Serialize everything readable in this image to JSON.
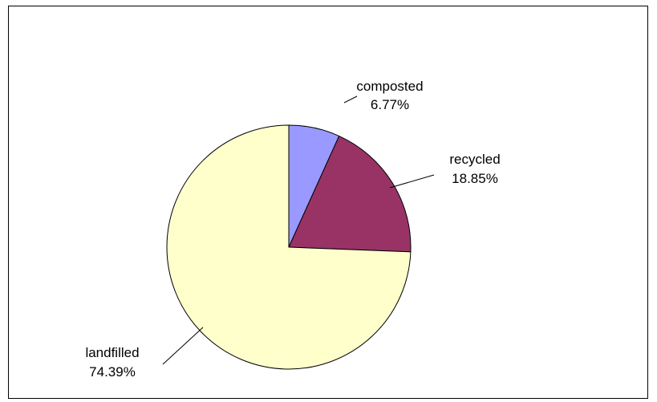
{
  "chart_data": {
    "type": "pie",
    "title": "",
    "start_angle_deg": 0,
    "direction": "clockwise",
    "slices": [
      {
        "label": "composted",
        "value": 6.77,
        "value_label": "6.77%",
        "color": "#9999FF"
      },
      {
        "label": "recycled",
        "value": 18.85,
        "value_label": "18.85%",
        "color": "#993366"
      },
      {
        "label": "landfilled",
        "value": 74.39,
        "value_label": "74.39%",
        "color": "#FFFFCC"
      }
    ],
    "slice_outline_color": "#000000",
    "legend": "none"
  }
}
